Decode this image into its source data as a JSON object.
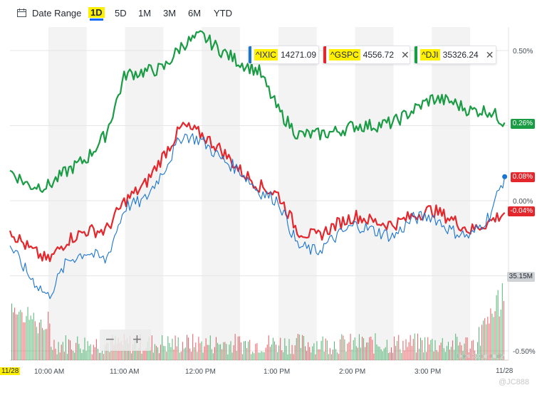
{
  "toolbar": {
    "date_range_label": "Date Range",
    "ranges": [
      "1D",
      "5D",
      "1M",
      "3M",
      "6M",
      "YTD"
    ],
    "active_range": "1D"
  },
  "legend": [
    {
      "symbol": "^IXIC",
      "value": "14271.09",
      "color": "#1a74d1",
      "closable": false
    },
    {
      "symbol": "^GSPC",
      "value": "4556.72",
      "color": "#e3272d",
      "closable": true
    },
    {
      "symbol": "^DJI",
      "value": "35326.24",
      "color": "#1a9c45",
      "closable": true
    }
  ],
  "y_labels": {
    "p050": "0.50%",
    "p000": "0.00%",
    "m050": "-0.50%"
  },
  "tags": {
    "dji": "0.26%",
    "ixic": "0.08%",
    "gspc": "-0.04%",
    "volume": "35.15M"
  },
  "x_labels": {
    "start": "11/28",
    "end": "11/28",
    "ticks": [
      "10:00 AM",
      "11:00 AM",
      "12:00 PM",
      "1:00 PM",
      "2:00 PM",
      "3:00 PM"
    ]
  },
  "zoom": {
    "minus": "−",
    "plus": "+"
  },
  "watermark": {
    "brand": "Tiger Community",
    "user": "@JC888"
  },
  "colors": {
    "ixic": "#1a74d1",
    "gspc": "#e3272d",
    "dji": "#1a9c45",
    "highlight": "#ffef00",
    "accent": "#0f69ff"
  },
  "chart_data": {
    "type": "line",
    "title": "",
    "ylabel": "",
    "ylim": [
      -0.55,
      0.6
    ],
    "x_unit": "hours (ET)",
    "x_range": [
      9.5,
      16.0
    ],
    "series": [
      {
        "name": "^DJI",
        "x": [
          9.5,
          9.75,
          10.0,
          10.25,
          10.5,
          10.75,
          11.0,
          11.25,
          11.5,
          11.75,
          12.0,
          12.25,
          12.5,
          12.75,
          13.0,
          13.25,
          13.5,
          13.75,
          14.0,
          14.25,
          14.5,
          14.75,
          15.0,
          15.25,
          15.5,
          15.75,
          15.95
        ],
        "y": [
          0.1,
          0.05,
          0.05,
          0.1,
          0.14,
          0.22,
          0.42,
          0.43,
          0.44,
          0.52,
          0.55,
          0.5,
          0.46,
          0.43,
          0.3,
          0.22,
          0.22,
          0.23,
          0.25,
          0.25,
          0.26,
          0.3,
          0.34,
          0.33,
          0.3,
          0.3,
          0.26
        ]
      },
      {
        "name": "^GSPC",
        "x": [
          9.5,
          9.75,
          10.0,
          10.25,
          10.5,
          10.75,
          11.0,
          11.25,
          11.5,
          11.75,
          12.0,
          12.25,
          12.5,
          12.75,
          13.0,
          13.25,
          13.5,
          13.75,
          14.0,
          14.25,
          14.5,
          14.75,
          15.0,
          15.25,
          15.5,
          15.75,
          15.95
        ],
        "y": [
          -0.1,
          -0.16,
          -0.2,
          -0.13,
          -0.1,
          -0.1,
          0.0,
          0.05,
          0.15,
          0.25,
          0.22,
          0.17,
          0.1,
          0.05,
          0.02,
          -0.1,
          -0.12,
          -0.08,
          -0.05,
          -0.07,
          -0.08,
          -0.05,
          -0.03,
          -0.06,
          -0.1,
          -0.07,
          -0.04
        ]
      },
      {
        "name": "^IXIC",
        "x": [
          9.5,
          9.75,
          10.0,
          10.25,
          10.5,
          10.75,
          11.0,
          11.25,
          11.5,
          11.75,
          12.0,
          12.25,
          12.5,
          12.75,
          13.0,
          13.25,
          13.5,
          13.75,
          14.0,
          14.25,
          14.5,
          14.75,
          15.0,
          15.25,
          15.5,
          15.75,
          15.95
        ],
        "y": [
          -0.15,
          -0.25,
          -0.32,
          -0.2,
          -0.17,
          -0.2,
          -0.02,
          0.0,
          0.1,
          0.22,
          0.2,
          0.14,
          0.1,
          0.03,
          0.0,
          -0.15,
          -0.17,
          -0.12,
          -0.08,
          -0.1,
          -0.12,
          -0.06,
          -0.05,
          -0.1,
          -0.12,
          -0.05,
          0.08
        ]
      }
    ],
    "volume_tag": "35.15M"
  }
}
